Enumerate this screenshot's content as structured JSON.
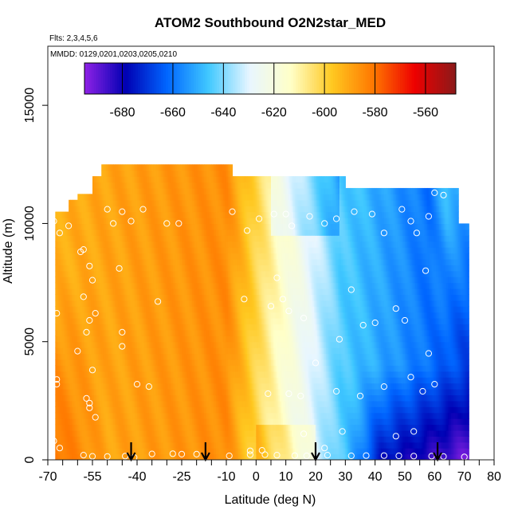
{
  "chart_data": {
    "type": "heatmap",
    "title": "ATOM2 Southbound O2N2star_MED",
    "subtitle_flights": "Flts: 2,3,4,5,6",
    "subtitle_dates": "MMDD: 0129,0201,0203,0205,0210",
    "xlabel": "Latitude (deg N)",
    "ylabel": "Altitude (m)",
    "xlim": [
      -70,
      80
    ],
    "ylim": [
      0,
      17500
    ],
    "x_ticks": [
      -70,
      -65,
      -60,
      -55,
      -50,
      -45,
      -40,
      -35,
      -30,
      -25,
      -20,
      -15,
      -10,
      -5,
      0,
      5,
      10,
      15,
      20,
      25,
      30,
      35,
      40,
      45,
      50,
      55,
      60,
      65,
      70,
      75,
      80
    ],
    "x_tick_labels": [
      "-70",
      "-55",
      "-40",
      "-25",
      "-10",
      "0",
      "10",
      "20",
      "30",
      "40",
      "50",
      "60",
      "70",
      "80"
    ],
    "x_tick_label_values": [
      -70,
      -55,
      -40,
      -25,
      -10,
      0,
      10,
      20,
      30,
      40,
      50,
      60,
      70,
      80
    ],
    "y_ticks": [
      0,
      5000,
      10000,
      15000
    ],
    "y_tick_labels": [
      "0",
      "5000",
      "10000",
      "15000"
    ],
    "colorbar": {
      "min": -695,
      "max": -548,
      "tick_values": [
        -680,
        -660,
        -640,
        -620,
        -600,
        -580,
        -560
      ],
      "tick_labels": [
        "-680",
        "-660",
        "-640",
        "-620",
        "-600",
        "-580",
        "-560"
      ],
      "colors": [
        "#8f22e6",
        "#0000b3",
        "#0066ff",
        "#40c8ff",
        "#e8f6ff",
        "#ffffc8",
        "#ffc820",
        "#ff7700",
        "#ee0000",
        "#8b1a1a"
      ]
    },
    "field_description": "Curtain of O2N2star anomaly vs latitude and altitude",
    "sounding_arrows_lat": [
      -42,
      -17,
      20,
      61
    ],
    "sample_points": [
      [
        -68,
        10100
      ],
      [
        -67,
        6200
      ],
      [
        -66,
        9600
      ],
      [
        -63,
        9900
      ],
      [
        -59,
        8800
      ],
      [
        -58,
        8900
      ],
      [
        -56,
        8200
      ],
      [
        -55,
        7600
      ],
      [
        -58,
        6900
      ],
      [
        -54,
        6200
      ],
      [
        -56,
        5900
      ],
      [
        -57,
        5400
      ],
      [
        -60,
        4600
      ],
      [
        -55,
        3800
      ],
      [
        -67,
        3400
      ],
      [
        -67,
        3200
      ],
      [
        -57,
        2600
      ],
      [
        -56,
        2400
      ],
      [
        -56,
        2200
      ],
      [
        -54,
        1800
      ],
      [
        -68,
        800
      ],
      [
        -66,
        500
      ],
      [
        -58,
        200
      ],
      [
        -55,
        150
      ],
      [
        -50,
        140
      ],
      [
        -44,
        160
      ],
      [
        -41,
        100
      ],
      [
        -50,
        10600
      ],
      [
        -48,
        10000
      ],
      [
        -42,
        10100
      ],
      [
        -45,
        10500
      ],
      [
        -38,
        10600
      ],
      [
        -46,
        8100
      ],
      [
        -45,
        5400
      ],
      [
        -45,
        4800
      ],
      [
        -40,
        3200
      ],
      [
        -33,
        6700
      ],
      [
        -36,
        3100
      ],
      [
        -30,
        10000
      ],
      [
        -26,
        10000
      ],
      [
        -20,
        240
      ],
      [
        -28,
        260
      ],
      [
        -35,
        250
      ],
      [
        -25,
        240
      ],
      [
        -8,
        10500
      ],
      [
        -3,
        9700
      ],
      [
        1,
        10200
      ],
      [
        6,
        10400
      ],
      [
        10,
        10400
      ],
      [
        12,
        9900
      ],
      [
        18,
        10300
      ],
      [
        23,
        10000
      ],
      [
        27,
        10200
      ],
      [
        33,
        10500
      ],
      [
        39,
        10400
      ],
      [
        43,
        9600
      ],
      [
        49,
        10600
      ],
      [
        52,
        10100
      ],
      [
        54,
        9600
      ],
      [
        57,
        8000
      ],
      [
        60,
        11300
      ],
      [
        63,
        11200
      ],
      [
        58,
        10300
      ],
      [
        7,
        7700
      ],
      [
        -4,
        6800
      ],
      [
        9,
        6800
      ],
      [
        11,
        6300
      ],
      [
        5,
        6500
      ],
      [
        16,
        6000
      ],
      [
        20,
        4100
      ],
      [
        28,
        5100
      ],
      [
        32,
        7200
      ],
      [
        36,
        5700
      ],
      [
        40,
        5800
      ],
      [
        47,
        6400
      ],
      [
        50,
        5900
      ],
      [
        58,
        4500
      ],
      [
        43,
        3100
      ],
      [
        52,
        3500
      ],
      [
        56,
        2900
      ],
      [
        60,
        3200
      ],
      [
        35,
        2700
      ],
      [
        27,
        2900
      ],
      [
        11,
        2800
      ],
      [
        4,
        2800
      ],
      [
        15,
        2700
      ],
      [
        23,
        500
      ],
      [
        29,
        1200
      ],
      [
        47,
        1000
      ],
      [
        53,
        1200
      ],
      [
        -9,
        170
      ],
      [
        -2,
        220
      ],
      [
        3,
        220
      ],
      [
        7,
        200
      ],
      [
        13,
        180
      ],
      [
        17,
        170
      ],
      [
        24,
        200
      ],
      [
        32,
        170
      ],
      [
        37,
        180
      ],
      [
        43,
        180
      ],
      [
        48,
        170
      ],
      [
        53,
        160
      ],
      [
        59,
        160
      ],
      [
        63,
        140
      ],
      [
        70,
        120
      ],
      [
        16,
        1100
      ],
      [
        2,
        400
      ],
      [
        -2,
        380
      ]
    ]
  }
}
